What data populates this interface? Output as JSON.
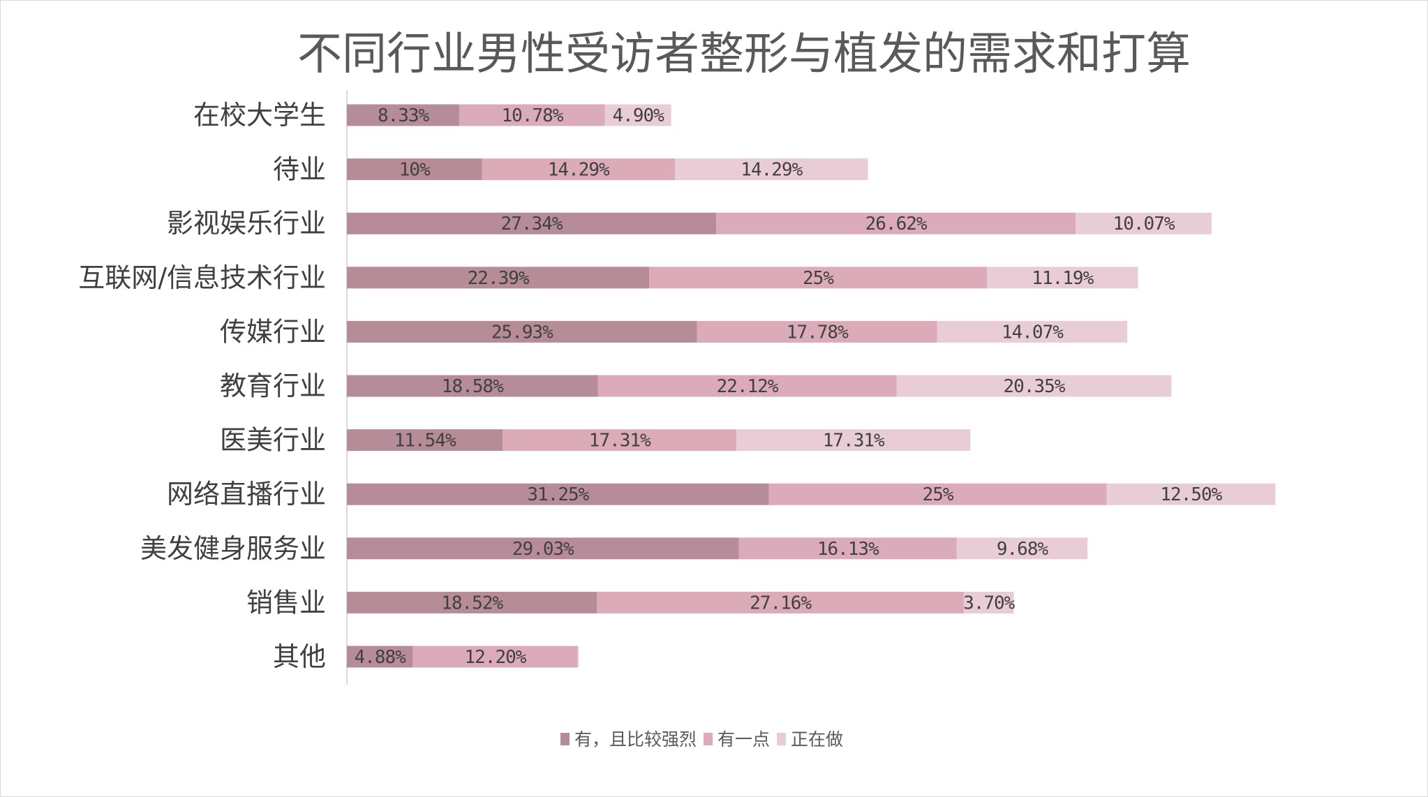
{
  "chart_data": {
    "type": "bar",
    "orientation": "horizontal",
    "stacked": true,
    "title": "不同行业男性受访者整形与植发的需求和打算",
    "categories": [
      "在校大学生",
      "待业",
      "影视娱乐行业",
      "互联网/信息技术行业",
      "传媒行业",
      "教育行业",
      "医美行业",
      "网络直播行业",
      "美发健身服务业",
      "销售业",
      "其他"
    ],
    "series": [
      {
        "name": "有，且比较强烈",
        "color": "#b68c98",
        "values": [
          8.33,
          10,
          27.34,
          22.39,
          25.93,
          18.58,
          11.54,
          31.25,
          29.03,
          18.52,
          4.88
        ],
        "labels": [
          "8.33%",
          "10%",
          "27.34%",
          "22.39%",
          "25.93%",
          "18.58%",
          "11.54%",
          "31.25%",
          "29.03%",
          "18.52%",
          "4.88%"
        ]
      },
      {
        "name": "有一点",
        "color": "#dcabba",
        "values": [
          10.78,
          14.29,
          26.62,
          25,
          17.78,
          22.12,
          17.31,
          25,
          16.13,
          27.16,
          12.2
        ],
        "labels": [
          "10.78%",
          "14.29%",
          "26.62%",
          "25%",
          "17.78%",
          "22.12%",
          "17.31%",
          "25%",
          "16.13%",
          "27.16%",
          "12.20%"
        ]
      },
      {
        "name": "正在做",
        "color": "#e9cdd6",
        "values": [
          4.9,
          14.29,
          10.07,
          11.19,
          14.07,
          20.35,
          17.31,
          12.5,
          9.68,
          3.7,
          0
        ],
        "labels": [
          "4.90%",
          "14.29%",
          "10.07%",
          "11.19%",
          "14.07%",
          "20.35%",
          "17.31%",
          "12.50%",
          "9.68%",
          "3.70%",
          ""
        ]
      }
    ],
    "xlim": [
      0,
      70
    ],
    "grid": false,
    "legend_position": "bottom"
  }
}
